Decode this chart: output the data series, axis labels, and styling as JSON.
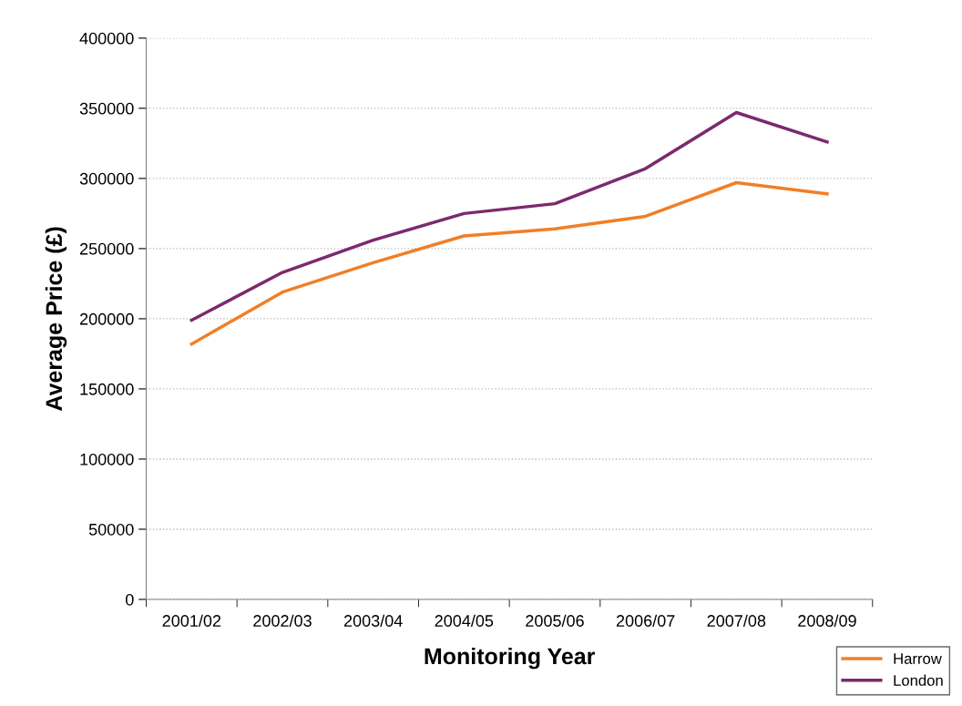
{
  "chart_data": {
    "type": "line",
    "xlabel": "Monitoring Year",
    "ylabel": "Average Price (£)",
    "categories": [
      "2001/02",
      "2002/03",
      "2003/04",
      "2004/05",
      "2005/06",
      "2006/07",
      "2007/08",
      "2008/09"
    ],
    "series": [
      {
        "name": "Harrow",
        "color": "#f07f27",
        "values": [
          182000,
          219000,
          240000,
          259000,
          264000,
          273000,
          297000,
          289000
        ]
      },
      {
        "name": "London",
        "color": "#7b2a6e",
        "values": [
          199000,
          233000,
          256000,
          275000,
          282000,
          307000,
          347000,
          326000
        ]
      }
    ],
    "ylim": [
      0,
      400000
    ],
    "yticks": [
      0,
      50000,
      100000,
      150000,
      200000,
      250000,
      300000,
      350000,
      400000
    ],
    "grid": "y",
    "legend": "bottom right",
    "marker": "none",
    "line_style": "solid"
  }
}
